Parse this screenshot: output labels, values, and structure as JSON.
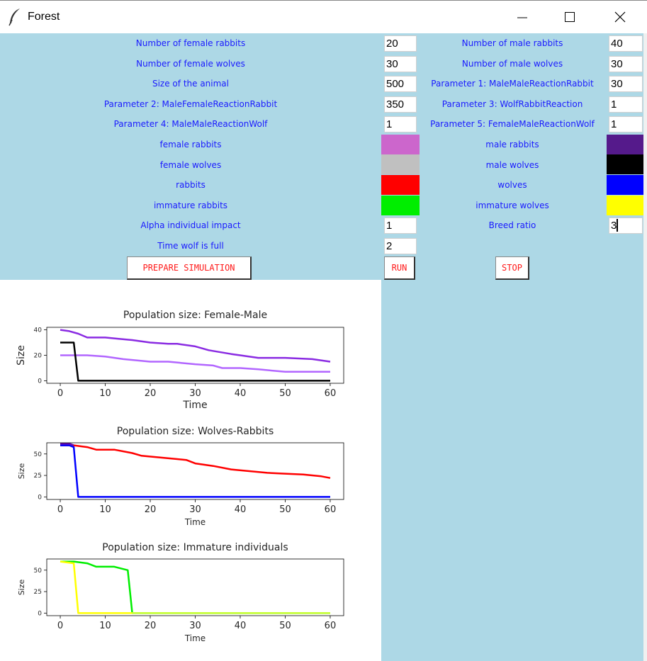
{
  "window": {
    "title": "Forest"
  },
  "form": {
    "rows": [
      {
        "left_label": "Number of female rabbits",
        "left_value": "20",
        "right_label": "Number of male rabbits",
        "right_value": "40"
      },
      {
        "left_label": "Number of female wolves",
        "left_value": "30",
        "right_label": "Number of male wolves",
        "right_value": "30"
      },
      {
        "left_label": "Size of the animal",
        "left_value": "500",
        "right_label": "Parameter 1: MaleMaleReactionRabbit",
        "right_value": "30"
      },
      {
        "left_label": "Parameter 2: MaleFemaleReactionRabbit",
        "left_value": "350",
        "right_label": "Parameter 3: WolfRabbitReaction",
        "right_value": "1"
      },
      {
        "left_label": "Parameter 4: MaleMaleReactionWolf",
        "left_value": "1",
        "right_label": "Parameter 5: FemaleMaleReactionWolf",
        "right_value": "1"
      }
    ],
    "colors": [
      {
        "left_label": "female rabbits",
        "left_color": "#cc66cc",
        "right_label": "male rabbits",
        "right_color": "#551a8b"
      },
      {
        "left_label": "female wolves",
        "left_color": "#c0c0c0",
        "right_label": "male wolves",
        "right_color": "#000000"
      },
      {
        "left_label": "rabbits",
        "left_color": "#ff0000",
        "right_label": "wolves",
        "right_color": "#0000ff"
      },
      {
        "left_label": "immature rabbits",
        "left_color": "#00ee00",
        "right_label": "immature wolves",
        "right_color": "#ffff00"
      }
    ],
    "extra": [
      {
        "left_label": "Alpha individual impact",
        "left_value": "1",
        "right_label": "Breed ratio",
        "right_value": "3"
      },
      {
        "left_label": "Time wolf is full",
        "left_value": "2"
      }
    ]
  },
  "buttons": {
    "prepare": "PREPARE SIMULATION",
    "run": "RUN",
    "stop": "STOP"
  },
  "chart_data": [
    {
      "type": "line",
      "title": "Population size: Female-Male",
      "xlabel": "Time",
      "ylabel": "Size",
      "xlim": [
        -3,
        63
      ],
      "ylim": [
        -2,
        42
      ],
      "xticks": [
        0,
        10,
        20,
        30,
        40,
        50,
        60
      ],
      "yticks": [
        0,
        20,
        40
      ],
      "series": [
        {
          "color": "#8a2be2",
          "x": [
            0,
            2,
            4,
            6,
            10,
            13,
            16,
            20,
            24,
            26,
            30,
            33,
            38,
            40,
            44,
            50,
            56,
            60
          ],
          "y": [
            40,
            39,
            37,
            34,
            34,
            33,
            32,
            30,
            29,
            29,
            27,
            24,
            21,
            20,
            18,
            18,
            17,
            15
          ]
        },
        {
          "color": "#b266ff",
          "x": [
            0,
            6,
            10,
            14,
            20,
            24,
            30,
            34,
            36,
            40,
            44,
            50,
            60
          ],
          "y": [
            20,
            20,
            19,
            17,
            15,
            15,
            13,
            12,
            10,
            10,
            9,
            7,
            7
          ]
        },
        {
          "color": "#000000",
          "x": [
            0,
            3,
            4,
            60
          ],
          "y": [
            30,
            30,
            0,
            0
          ]
        }
      ]
    },
    {
      "type": "line",
      "title": "Population size: Wolves-Rabbits",
      "xlabel": "Time",
      "ylabel": "Size",
      "xlim": [
        -3,
        63
      ],
      "ylim": [
        -3,
        63
      ],
      "xticks": [
        0,
        10,
        20,
        30,
        40,
        50,
        60
      ],
      "yticks": [
        0,
        25,
        50
      ],
      "series": [
        {
          "color": "#ff0000",
          "x": [
            0,
            3,
            6,
            8,
            12,
            16,
            18,
            22,
            26,
            28,
            30,
            34,
            38,
            42,
            46,
            50,
            54,
            58,
            60
          ],
          "y": [
            60,
            60,
            58,
            55,
            55,
            51,
            48,
            46,
            44,
            43,
            39,
            36,
            32,
            30,
            28,
            27,
            26,
            24,
            22
          ]
        },
        {
          "color": "#0000ff",
          "x": [
            0,
            2,
            3,
            4,
            60
          ],
          "y": [
            60,
            60,
            58,
            0,
            0
          ]
        },
        {
          "color": "#6a0dad",
          "x": [
            0,
            2,
            3
          ],
          "y": [
            62,
            62,
            60
          ]
        }
      ]
    },
    {
      "type": "line",
      "title": "Population size: Immature individuals",
      "xlabel": "Time",
      "ylabel": "Size",
      "xlim": [
        -3,
        63
      ],
      "ylim": [
        -3,
        63
      ],
      "xticks": [
        0,
        10,
        20,
        30,
        40,
        50,
        60
      ],
      "yticks": [
        0,
        25,
        50
      ],
      "series": [
        {
          "color": "#00ee00",
          "x": [
            0,
            3,
            6,
            8,
            12,
            15,
            16,
            60
          ],
          "y": [
            60,
            60,
            58,
            54,
            54,
            50,
            0,
            0
          ]
        },
        {
          "color": "#ffff00",
          "x": [
            0,
            3,
            4,
            60
          ],
          "y": [
            60,
            58,
            0,
            0
          ]
        },
        {
          "color": "#c8ff40",
          "x": [
            16,
            60
          ],
          "y": [
            0,
            0
          ]
        }
      ]
    }
  ]
}
